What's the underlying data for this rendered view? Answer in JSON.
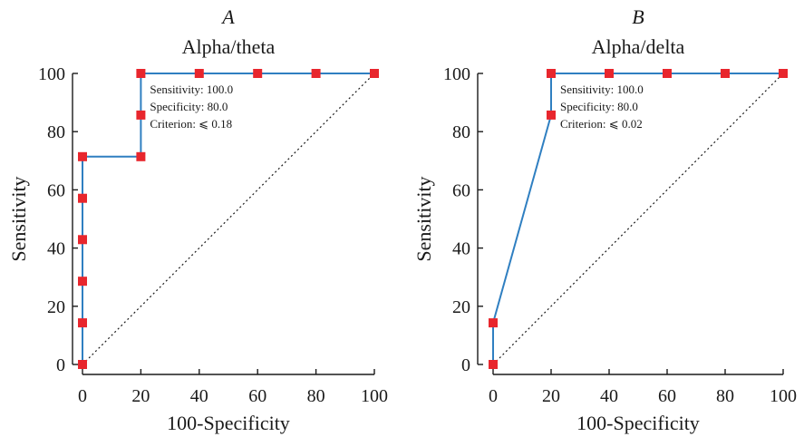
{
  "chart_data": [
    {
      "type": "line",
      "panel": "A",
      "title": "Alpha/theta",
      "xlabel": "100-Specificity",
      "ylabel": "Sensitivity",
      "xlim": [
        0,
        100
      ],
      "ylim": [
        0,
        100
      ],
      "xticks": [
        0,
        20,
        40,
        60,
        80,
        100
      ],
      "yticks": [
        0,
        20,
        40,
        60,
        80,
        100
      ],
      "series": [
        {
          "color": "#2f7fc1",
          "marker_color": "#e8262d",
          "x": [
            0,
            0,
            0,
            0,
            0,
            0,
            20,
            20,
            20,
            40,
            60,
            80,
            100
          ],
          "y": [
            0,
            14.3,
            28.6,
            42.9,
            57.1,
            71.4,
            71.4,
            85.7,
            100,
            100,
            100,
            100,
            100
          ]
        }
      ],
      "reference_line": {
        "style": "dotted",
        "x": [
          0,
          100
        ],
        "y": [
          0,
          100
        ]
      },
      "annotations": [
        "Sensitivity: 100.0",
        "Specificity: 80.0",
        "Criterion: ⩽ 0.18"
      ],
      "grid": false
    },
    {
      "type": "line",
      "panel": "B",
      "title": "Alpha/delta",
      "xlabel": "100-Specificity",
      "ylabel": "Sensitivity",
      "xlim": [
        0,
        100
      ],
      "ylim": [
        0,
        100
      ],
      "xticks": [
        0,
        20,
        40,
        60,
        80,
        100
      ],
      "yticks": [
        0,
        20,
        40,
        60,
        80,
        100
      ],
      "series": [
        {
          "color": "#2f7fc1",
          "marker_color": "#e8262d",
          "x": [
            0,
            0,
            20,
            20,
            40,
            60,
            80,
            100
          ],
          "y": [
            0,
            14.3,
            85.7,
            100,
            100,
            100,
            100,
            100
          ]
        }
      ],
      "reference_line": {
        "style": "dotted",
        "x": [
          0,
          100
        ],
        "y": [
          0,
          100
        ]
      },
      "annotations": [
        "Sensitivity: 100.0",
        "Specificity: 80.0",
        "Criterion: ⩽ 0.02"
      ],
      "grid": false
    }
  ]
}
